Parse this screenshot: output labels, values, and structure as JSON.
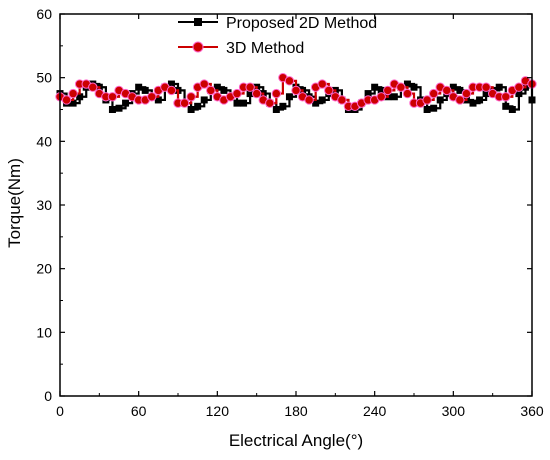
{
  "chart_data": {
    "type": "line",
    "xlabel": "Electrical Angle(°)",
    "ylabel": "Torque(Nm)",
    "xlim": [
      0,
      360
    ],
    "ylim": [
      0,
      60
    ],
    "xticks": [
      0,
      60,
      120,
      180,
      240,
      300,
      360
    ],
    "yticks": [
      0,
      10,
      20,
      30,
      40,
      50,
      60
    ],
    "grid": false,
    "legend_position": "top-center",
    "series": [
      {
        "name": "Proposed 2D Method",
        "color": "#000000",
        "marker": "square",
        "x": [
          0,
          5,
          10,
          15,
          20,
          25,
          30,
          35,
          40,
          45,
          50,
          55,
          60,
          65,
          70,
          75,
          80,
          85,
          90,
          95,
          100,
          105,
          110,
          115,
          120,
          125,
          130,
          135,
          140,
          145,
          150,
          155,
          160,
          165,
          170,
          175,
          180,
          185,
          190,
          195,
          200,
          205,
          210,
          215,
          220,
          225,
          230,
          235,
          240,
          245,
          250,
          255,
          260,
          265,
          270,
          275,
          280,
          285,
          290,
          295,
          300,
          305,
          310,
          315,
          320,
          325,
          330,
          335,
          340,
          345,
          350,
          355,
          360
        ],
        "y": [
          47.5,
          46.0,
          46.0,
          47.0,
          48.5,
          49.0,
          48.5,
          46.5,
          45.0,
          45.2,
          46.0,
          47.5,
          48.5,
          48.0,
          47.0,
          46.5,
          48.5,
          49.0,
          48.0,
          46.0,
          45.0,
          45.5,
          46.5,
          48.0,
          48.5,
          48.0,
          47.0,
          46.0,
          46.0,
          47.5,
          48.5,
          47.5,
          46.0,
          45.0,
          45.5,
          47.0,
          48.5,
          48.0,
          47.0,
          46.0,
          46.5,
          47.5,
          48.0,
          46.5,
          45.0,
          45.0,
          46.0,
          47.5,
          48.5,
          48.0,
          47.0,
          47.0,
          48.5,
          49.0,
          48.5,
          46.5,
          45.0,
          45.2,
          46.5,
          47.5,
          48.5,
          48.0,
          46.5,
          46.0,
          46.5,
          47.5,
          48.0,
          48.5,
          45.5,
          45.0,
          47.5,
          48.5,
          46.5
        ]
      },
      {
        "name": "3D Method",
        "color": "#cc0000",
        "marker": "circle",
        "x": [
          0,
          5,
          10,
          15,
          20,
          25,
          30,
          35,
          40,
          45,
          50,
          55,
          60,
          65,
          70,
          75,
          80,
          85,
          90,
          95,
          100,
          105,
          110,
          115,
          120,
          125,
          130,
          135,
          140,
          145,
          150,
          155,
          160,
          165,
          170,
          175,
          180,
          185,
          190,
          195,
          200,
          205,
          210,
          215,
          220,
          225,
          230,
          235,
          240,
          245,
          250,
          255,
          260,
          265,
          270,
          275,
          280,
          285,
          290,
          295,
          300,
          305,
          310,
          315,
          320,
          325,
          330,
          335,
          340,
          345,
          350,
          355,
          360
        ],
        "y": [
          47.0,
          46.5,
          47.5,
          49.0,
          49.0,
          48.5,
          47.5,
          47.0,
          47.0,
          48.0,
          47.5,
          47.0,
          46.5,
          46.5,
          47.0,
          48.0,
          48.5,
          48.0,
          46.0,
          46.0,
          47.0,
          48.5,
          49.0,
          48.0,
          47.0,
          46.5,
          47.0,
          47.5,
          48.5,
          48.5,
          47.5,
          46.5,
          46.0,
          47.5,
          50.0,
          49.5,
          48.0,
          47.0,
          46.5,
          48.5,
          49.0,
          48.0,
          47.0,
          46.5,
          45.5,
          45.5,
          46.0,
          46.5,
          46.5,
          47.0,
          48.0,
          49.0,
          48.5,
          47.5,
          46.0,
          46.0,
          46.5,
          47.5,
          48.5,
          48.0,
          47.0,
          46.5,
          47.5,
          48.5,
          48.5,
          48.5,
          47.5,
          47.0,
          47.0,
          48.0,
          48.5,
          49.5,
          49.0
        ]
      }
    ]
  }
}
